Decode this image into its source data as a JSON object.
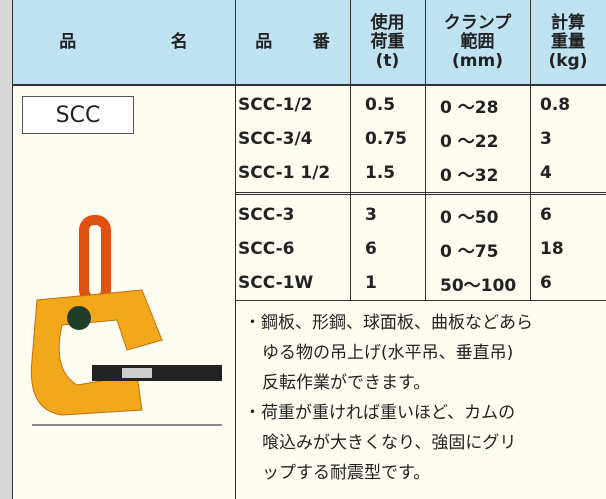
{
  "header": {
    "columns": [
      [
        "品",
        "名"
      ],
      [
        "品",
        "番"
      ],
      [
        "使用",
        "荷重",
        "(t)"
      ],
      [
        "クランプ",
        "範囲",
        "(mm)"
      ],
      [
        "計算",
        "重量",
        "(kg)"
      ]
    ]
  },
  "product_name": "SCC",
  "table": {
    "groups": [
      [
        [
          "SCC-1/2",
          "0.5",
          "0 〜28",
          "0.8"
        ],
        [
          "SCC-3/4",
          "0.75",
          "0 〜22",
          "3"
        ],
        [
          "SCC-1 1/2",
          "1.5",
          "0 〜32",
          "4"
        ]
      ],
      [
        [
          "SCC-3",
          "3",
          "0 〜50",
          "6"
        ],
        [
          "SCC-6",
          "6",
          "0 〜75",
          "18"
        ],
        [
          "SCC-1W",
          "1",
          "50〜100",
          "6"
        ]
      ]
    ]
  },
  "notes": [
    [
      "・鋼板、形鋼、球面板、曲板などあら",
      "ゆる物の吊上げ(水平吊、垂直吊)",
      "反転作業ができます。"
    ],
    [
      "・荷重が重ければ重いほど、カムの",
      "喰込みが大きくなり、強固にグリ",
      "ップする耐震型です。"
    ]
  ]
}
